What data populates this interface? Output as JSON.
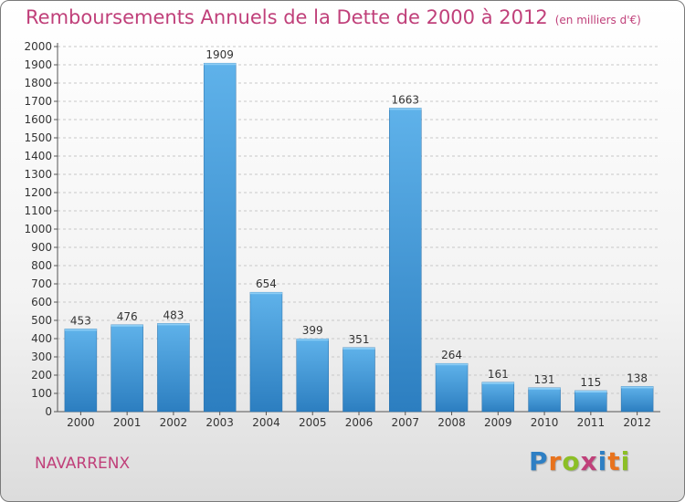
{
  "header": {
    "title": "Remboursements Annuels de la Dette de 2000 à 2012",
    "unit": "(en milliers d'€)"
  },
  "footer": {
    "town": "NAVARRENX",
    "logo_letters": [
      "P",
      "r",
      "o",
      "x",
      "i",
      "t",
      "i"
    ],
    "logo_colors": [
      "#2e7fc4",
      "#e8731d",
      "#8cbf26",
      "#c0407a",
      "#2e7fc4",
      "#e8731d",
      "#8cbf26"
    ]
  },
  "colors": {
    "bar_light": "#5fb2ea",
    "bar_dark": "#2c7ec0",
    "title": "#c0407a"
  },
  "chart_data": {
    "type": "bar",
    "categories": [
      "2000",
      "2001",
      "2002",
      "2003",
      "2004",
      "2005",
      "2006",
      "2007",
      "2008",
      "2009",
      "2010",
      "2011",
      "2012"
    ],
    "values": [
      453,
      476,
      483,
      1909,
      654,
      399,
      351,
      1663,
      264,
      161,
      131,
      115,
      138
    ],
    "ylim": [
      0,
      2000
    ],
    "yticks": [
      0,
      100,
      200,
      300,
      400,
      500,
      600,
      700,
      800,
      900,
      1000,
      1100,
      1200,
      1300,
      1400,
      1500,
      1600,
      1700,
      1800,
      1900,
      2000
    ],
    "grid": true,
    "data_labels": true
  }
}
